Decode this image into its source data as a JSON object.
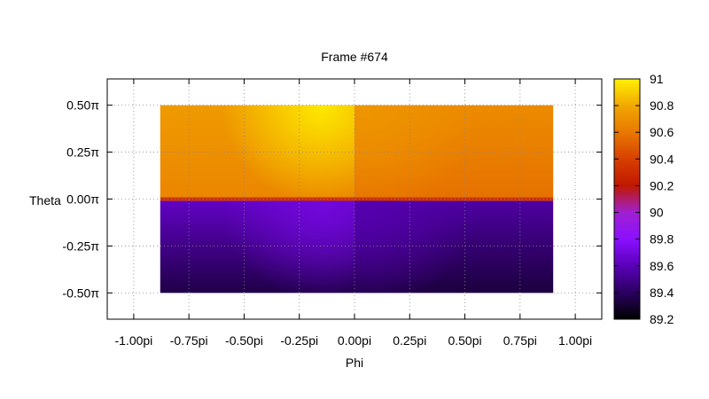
{
  "chart_data": {
    "type": "heatmap",
    "title": "Frame #674",
    "xlabel": "Phi",
    "ylabel": "Theta",
    "xlim": [
      -1.12,
      1.12
    ],
    "ylim": [
      -0.64,
      0.64
    ],
    "x_ticks": [
      {
        "value": -1.0,
        "label": "-1.00pi"
      },
      {
        "value": -0.75,
        "label": "-0.75pi"
      },
      {
        "value": -0.5,
        "label": "-0.50pi"
      },
      {
        "value": -0.25,
        "label": "-0.25pi"
      },
      {
        "value": 0.0,
        "label": "0.00pi"
      },
      {
        "value": 0.25,
        "label": "0.25pi"
      },
      {
        "value": 0.5,
        "label": "0.50pi"
      },
      {
        "value": 0.75,
        "label": "0.75pi"
      },
      {
        "value": 1.0,
        "label": "1.00pi"
      }
    ],
    "y_ticks": [
      {
        "value": 0.5,
        "label": "0.50π"
      },
      {
        "value": 0.25,
        "label": "0.25π"
      },
      {
        "value": 0.0,
        "label": "0.00π"
      },
      {
        "value": -0.25,
        "label": "-0.25π"
      },
      {
        "value": -0.5,
        "label": "-0.50π"
      }
    ],
    "grid": true,
    "colorbar": {
      "min": 89.2,
      "max": 91.0,
      "ticks": [
        "89.2",
        "89.4",
        "89.6",
        "89.8",
        "90",
        "90.2",
        "90.4",
        "90.6",
        "90.8",
        "91"
      ],
      "palette": [
        "#000000",
        "#2a0060",
        "#5a00b8",
        "#8a10ff",
        "#a020d0",
        "#c01800",
        "#d84000",
        "#e87800",
        "#f2a800",
        "#fff000"
      ]
    },
    "data_extent": {
      "phi": [
        -0.88,
        0.9
      ],
      "theta": [
        -0.5,
        0.5
      ]
    },
    "cells": [
      {
        "phi": [
          -0.88,
          0.0
        ],
        "theta": [
          0.01,
          0.5
        ],
        "value_top": 90.74,
        "value_bottom": 90.66,
        "peak_phi": -0.15,
        "peak_value": 90.98,
        "peak_width": 0.45
      },
      {
        "phi": [
          0.0,
          0.9
        ],
        "theta": [
          0.01,
          0.5
        ],
        "value_top": 90.68,
        "value_bottom": 90.58,
        "peak_phi": 0.05,
        "peak_value": 90.72,
        "peak_width": 0.5
      },
      {
        "phi": [
          -0.88,
          0.9
        ],
        "theta": [
          -0.01,
          0.01
        ],
        "value_top": 90.35,
        "value_bottom": 90.3
      },
      {
        "phi": [
          -0.88,
          0.0
        ],
        "theta": [
          -0.5,
          -0.01
        ],
        "value_top": 89.63,
        "value_bottom": 89.35,
        "peak_phi": -0.15,
        "peak_value": 89.7,
        "peak_width": 0.45
      },
      {
        "phi": [
          0.0,
          0.9
        ],
        "theta": [
          -0.5,
          -0.01
        ],
        "value_top": 89.55,
        "value_bottom": 89.33,
        "peak_phi": 0.05,
        "peak_value": 89.58,
        "peak_width": 0.5
      }
    ]
  }
}
